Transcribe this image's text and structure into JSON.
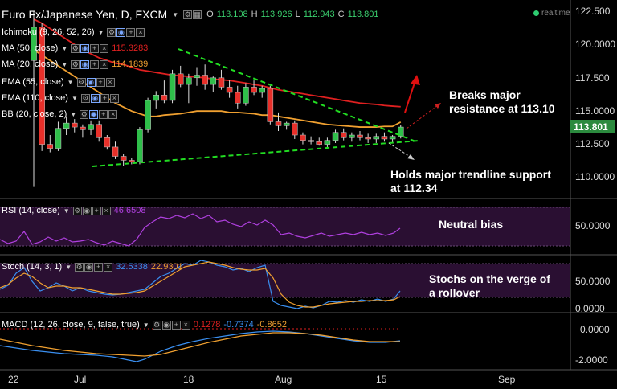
{
  "header": {
    "title": "Euro Fx/Japanese Yen, D, FXCM",
    "ohlc": [
      {
        "k": "O",
        "v": "113.108"
      },
      {
        "k": "H",
        "v": "113.926"
      },
      {
        "k": "L",
        "v": "112.943"
      },
      {
        "k": "C",
        "v": "113.801"
      }
    ],
    "realtime": "realtime"
  },
  "indicators": [
    {
      "label": "Ichimoku (9, 26, 52, 26)",
      "value": "",
      "color": "#ffffff"
    },
    {
      "label": "MA (50, close)",
      "value": "115.3283",
      "color": "#e02020"
    },
    {
      "label": "MA (20, close)",
      "value": "114.1839",
      "color": "#f0a030"
    },
    {
      "label": "EMA (55, close)",
      "value": "",
      "color": "#ffffff"
    },
    {
      "label": "EMA (110, close)",
      "value": "",
      "color": "#ffffff"
    },
    {
      "label": "BB (20, close, 2)",
      "value": "",
      "color": "#ffffff"
    }
  ],
  "rsi": {
    "label": "RSI (14, close)",
    "value": "46.6508",
    "color": "#b040e0"
  },
  "stoch": {
    "label": "Stoch (14, 3, 1)",
    "k": "32.5338",
    "d": "22.9301",
    "kcolor": "#3a8ff0",
    "dcolor": "#f0a030"
  },
  "macd": {
    "label": "MACD (12, 26, close, 9, false, true)",
    "hist": "0.1278",
    "macd": "-0.7374",
    "signal": "-0.8652",
    "hcolor": "#e02020",
    "mcolor": "#3a8ff0",
    "scolor": "#f0a030"
  },
  "annotations": {
    "breaks": [
      "Breaks major",
      "resistance at 113.10"
    ],
    "holds": [
      "Holds major trendline support",
      "at 112.34"
    ],
    "neutral": "Neutral bias",
    "stochs": [
      "Stochs on the verge of",
      "a rollover"
    ]
  },
  "axes": {
    "price_ticks": [
      "122.500",
      "120.0000",
      "117.500",
      "115.0000",
      "112.500",
      "110.0000"
    ],
    "current_price": "113.801",
    "rsi_ticks": [
      "50.0000"
    ],
    "stoch_ticks": [
      "50.0000",
      "0.0000"
    ],
    "macd_ticks": [
      "0.0000",
      "-2.0000"
    ],
    "x_ticks": [
      "22",
      "Jul",
      "18",
      "Aug",
      "15",
      "Sep"
    ]
  },
  "chart_data": {
    "type": "candlestick",
    "ylim": [
      109.3,
      123.3
    ],
    "candles": [
      {
        "o": 118.8,
        "h": 122.5,
        "l": 109.3,
        "c": 121.3
      },
      {
        "o": 121.3,
        "h": 121.6,
        "l": 112.0,
        "c": 112.5
      },
      {
        "o": 112.5,
        "h": 113.2,
        "l": 111.9,
        "c": 112.2
      },
      {
        "o": 112.2,
        "h": 114.2,
        "l": 112.0,
        "c": 113.7
      },
      {
        "o": 113.7,
        "h": 114.6,
        "l": 113.2,
        "c": 114.1
      },
      {
        "o": 114.1,
        "h": 114.4,
        "l": 113.4,
        "c": 113.8
      },
      {
        "o": 113.8,
        "h": 114.0,
        "l": 113.0,
        "c": 113.6
      },
      {
        "o": 113.6,
        "h": 114.3,
        "l": 113.2,
        "c": 114.0
      },
      {
        "o": 114.0,
        "h": 114.3,
        "l": 112.7,
        "c": 113.0
      },
      {
        "o": 113.0,
        "h": 113.2,
        "l": 112.1,
        "c": 112.3
      },
      {
        "o": 112.3,
        "h": 112.7,
        "l": 111.4,
        "c": 111.6
      },
      {
        "o": 111.6,
        "h": 111.8,
        "l": 110.9,
        "c": 111.3
      },
      {
        "o": 111.3,
        "h": 111.5,
        "l": 111.0,
        "c": 111.2
      },
      {
        "o": 111.2,
        "h": 113.8,
        "l": 111.0,
        "c": 113.6
      },
      {
        "o": 113.6,
        "h": 116.0,
        "l": 113.4,
        "c": 115.8
      },
      {
        "o": 115.8,
        "h": 116.5,
        "l": 115.2,
        "c": 116.2
      },
      {
        "o": 116.2,
        "h": 117.3,
        "l": 115.6,
        "c": 115.8
      },
      {
        "o": 115.8,
        "h": 118.1,
        "l": 115.6,
        "c": 117.8
      },
      {
        "o": 117.8,
        "h": 118.4,
        "l": 116.8,
        "c": 117.0
      },
      {
        "o": 117.0,
        "h": 117.8,
        "l": 115.6,
        "c": 117.5
      },
      {
        "o": 117.5,
        "h": 118.3,
        "l": 116.9,
        "c": 117.7
      },
      {
        "o": 117.7,
        "h": 118.5,
        "l": 116.6,
        "c": 117.0
      },
      {
        "o": 117.0,
        "h": 117.6,
        "l": 116.4,
        "c": 117.5
      },
      {
        "o": 117.5,
        "h": 118.1,
        "l": 116.6,
        "c": 116.8
      },
      {
        "o": 116.8,
        "h": 117.3,
        "l": 116.0,
        "c": 116.4
      },
      {
        "o": 116.4,
        "h": 116.9,
        "l": 115.2,
        "c": 115.6
      },
      {
        "o": 115.6,
        "h": 117.1,
        "l": 115.4,
        "c": 116.8
      },
      {
        "o": 116.8,
        "h": 117.3,
        "l": 116.2,
        "c": 116.4
      },
      {
        "o": 116.4,
        "h": 116.9,
        "l": 116.0,
        "c": 116.7
      },
      {
        "o": 116.7,
        "h": 116.9,
        "l": 114.0,
        "c": 114.2
      },
      {
        "o": 114.2,
        "h": 114.9,
        "l": 113.5,
        "c": 113.9
      },
      {
        "o": 113.9,
        "h": 114.2,
        "l": 113.6,
        "c": 114.1
      },
      {
        "o": 114.1,
        "h": 114.3,
        "l": 112.9,
        "c": 113.2
      },
      {
        "o": 113.2,
        "h": 113.4,
        "l": 112.5,
        "c": 112.8
      },
      {
        "o": 112.8,
        "h": 113.1,
        "l": 112.5,
        "c": 112.7
      },
      {
        "o": 112.7,
        "h": 113.0,
        "l": 112.4,
        "c": 112.5
      },
      {
        "o": 112.5,
        "h": 113.0,
        "l": 112.3,
        "c": 112.8
      },
      {
        "o": 112.8,
        "h": 113.6,
        "l": 112.6,
        "c": 113.4
      },
      {
        "o": 113.4,
        "h": 113.7,
        "l": 112.8,
        "c": 113.0
      },
      {
        "o": 113.0,
        "h": 113.4,
        "l": 112.7,
        "c": 113.2
      },
      {
        "o": 113.2,
        "h": 113.5,
        "l": 112.8,
        "c": 113.0
      },
      {
        "o": 113.0,
        "h": 113.3,
        "l": 112.6,
        "c": 112.9
      },
      {
        "o": 112.9,
        "h": 113.3,
        "l": 112.6,
        "c": 113.1
      },
      {
        "o": 113.1,
        "h": 113.4,
        "l": 112.7,
        "c": 112.9
      },
      {
        "o": 112.9,
        "h": 113.2,
        "l": 112.6,
        "c": 113.1
      },
      {
        "o": 113.108,
        "h": 113.926,
        "l": 112.943,
        "c": 113.801
      }
    ],
    "ma50": [
      121.9,
      121.6,
      121.2,
      120.8,
      120.4,
      120.0,
      119.6,
      119.3,
      119.0,
      118.8,
      118.6,
      118.5,
      118.3,
      118.1,
      118.0,
      117.9,
      117.8,
      117.7,
      117.65,
      117.6,
      117.55,
      117.5,
      117.4,
      117.35,
      117.3,
      117.2,
      117.1,
      117.0,
      116.9,
      116.75,
      116.6,
      116.5,
      116.4,
      116.3,
      116.2,
      116.1,
      116.0,
      115.9,
      115.8,
      115.7,
      115.6,
      115.55,
      115.5,
      115.42,
      115.37,
      115.33
    ],
    "ma20": [
      119.6,
      119.2,
      118.8,
      118.4,
      118.0,
      117.6,
      117.2,
      116.8,
      116.4,
      116.0,
      115.6,
      115.3,
      115.0,
      114.8,
      114.6,
      114.6,
      114.7,
      114.75,
      114.8,
      114.9,
      115.0,
      115.0,
      115.0,
      115.0,
      114.9,
      114.9,
      114.85,
      114.8,
      114.7,
      114.7,
      114.6,
      114.5,
      114.4,
      114.3,
      114.2,
      114.1,
      114.0,
      113.95,
      113.9,
      113.85,
      113.8,
      113.8,
      113.8,
      113.85,
      113.85,
      114.18
    ]
  }
}
